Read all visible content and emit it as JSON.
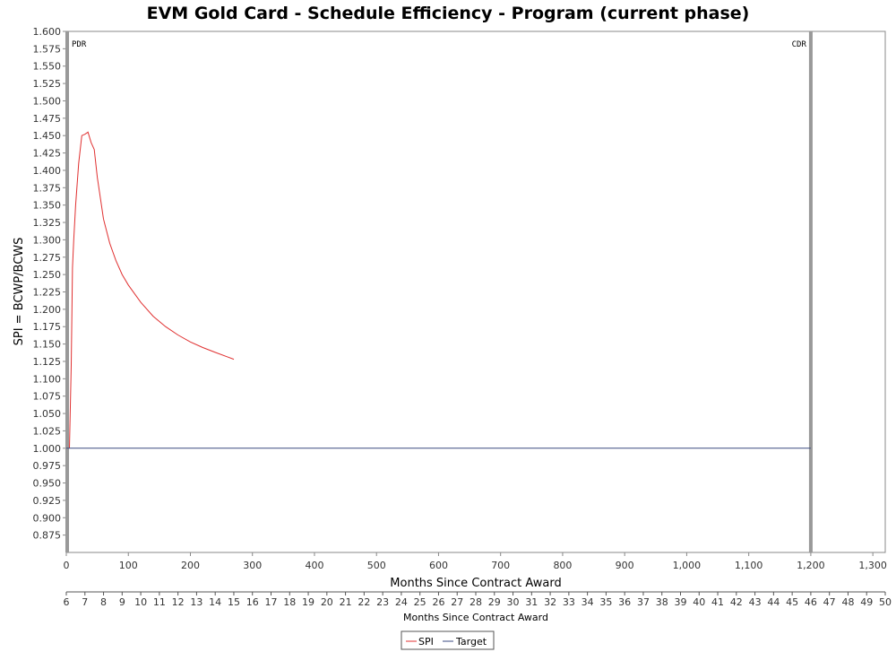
{
  "chart_data": {
    "type": "line",
    "title": "EVM Gold Card - Schedule Efficiency - Program (current phase)",
    "xlabel": "Months Since Contract Award",
    "ylabel": "SPI = BCWP/BCWS",
    "xlim": [
      0,
      1320
    ],
    "ylim": [
      0.85,
      1.6
    ],
    "x_ticks": [
      "0",
      "100",
      "200",
      "300",
      "400",
      "500",
      "600",
      "700",
      "800",
      "900",
      "1,000",
      "1,100",
      "1,200",
      "1,300"
    ],
    "y_ticks": [
      "0.875",
      "0.900",
      "0.925",
      "0.950",
      "0.975",
      "1.000",
      "1.025",
      "1.050",
      "1.075",
      "1.100",
      "1.125",
      "1.150",
      "1.175",
      "1.200",
      "1.225",
      "1.250",
      "1.275",
      "1.300",
      "1.325",
      "1.350",
      "1.375",
      "1.400",
      "1.425",
      "1.450",
      "1.475",
      "1.500",
      "1.525",
      "1.550",
      "1.575",
      "1.600"
    ],
    "secondary_axis": {
      "label": "Months Since Contract Award",
      "min": 6,
      "max": 50,
      "ticks": [
        "6",
        "7",
        "8",
        "9",
        "10",
        "11",
        "12",
        "13",
        "14",
        "15",
        "16",
        "17",
        "18",
        "19",
        "20",
        "21",
        "22",
        "23",
        "24",
        "25",
        "26",
        "27",
        "28",
        "29",
        "30",
        "31",
        "32",
        "33",
        "34",
        "35",
        "36",
        "37",
        "38",
        "39",
        "40",
        "41",
        "42",
        "43",
        "44",
        "45",
        "46",
        "47",
        "48",
        "49",
        "50"
      ]
    },
    "markers": [
      {
        "label": "PDR",
        "x": 0
      },
      {
        "label": "CDR",
        "x": 1200
      }
    ],
    "series": [
      {
        "name": "SPI",
        "color": "#e03030",
        "x": [
          5,
          8,
          10,
          12,
          15,
          20,
          25,
          30,
          35,
          40,
          45,
          50,
          60,
          70,
          80,
          90,
          100,
          120,
          140,
          160,
          180,
          200,
          220,
          240,
          270
        ],
        "y": [
          1.0,
          1.12,
          1.26,
          1.3,
          1.35,
          1.41,
          1.45,
          1.452,
          1.455,
          1.44,
          1.43,
          1.39,
          1.33,
          1.295,
          1.27,
          1.25,
          1.235,
          1.21,
          1.19,
          1.175,
          1.163,
          1.153,
          1.145,
          1.138,
          1.128
        ]
      },
      {
        "name": "Target",
        "color": "#3a4a80",
        "x": [
          0,
          1200
        ],
        "y": [
          1.0,
          1.0
        ]
      }
    ],
    "legend": {
      "placement": "bottom-center",
      "entries": [
        "SPI",
        "Target"
      ]
    },
    "grid": false
  }
}
